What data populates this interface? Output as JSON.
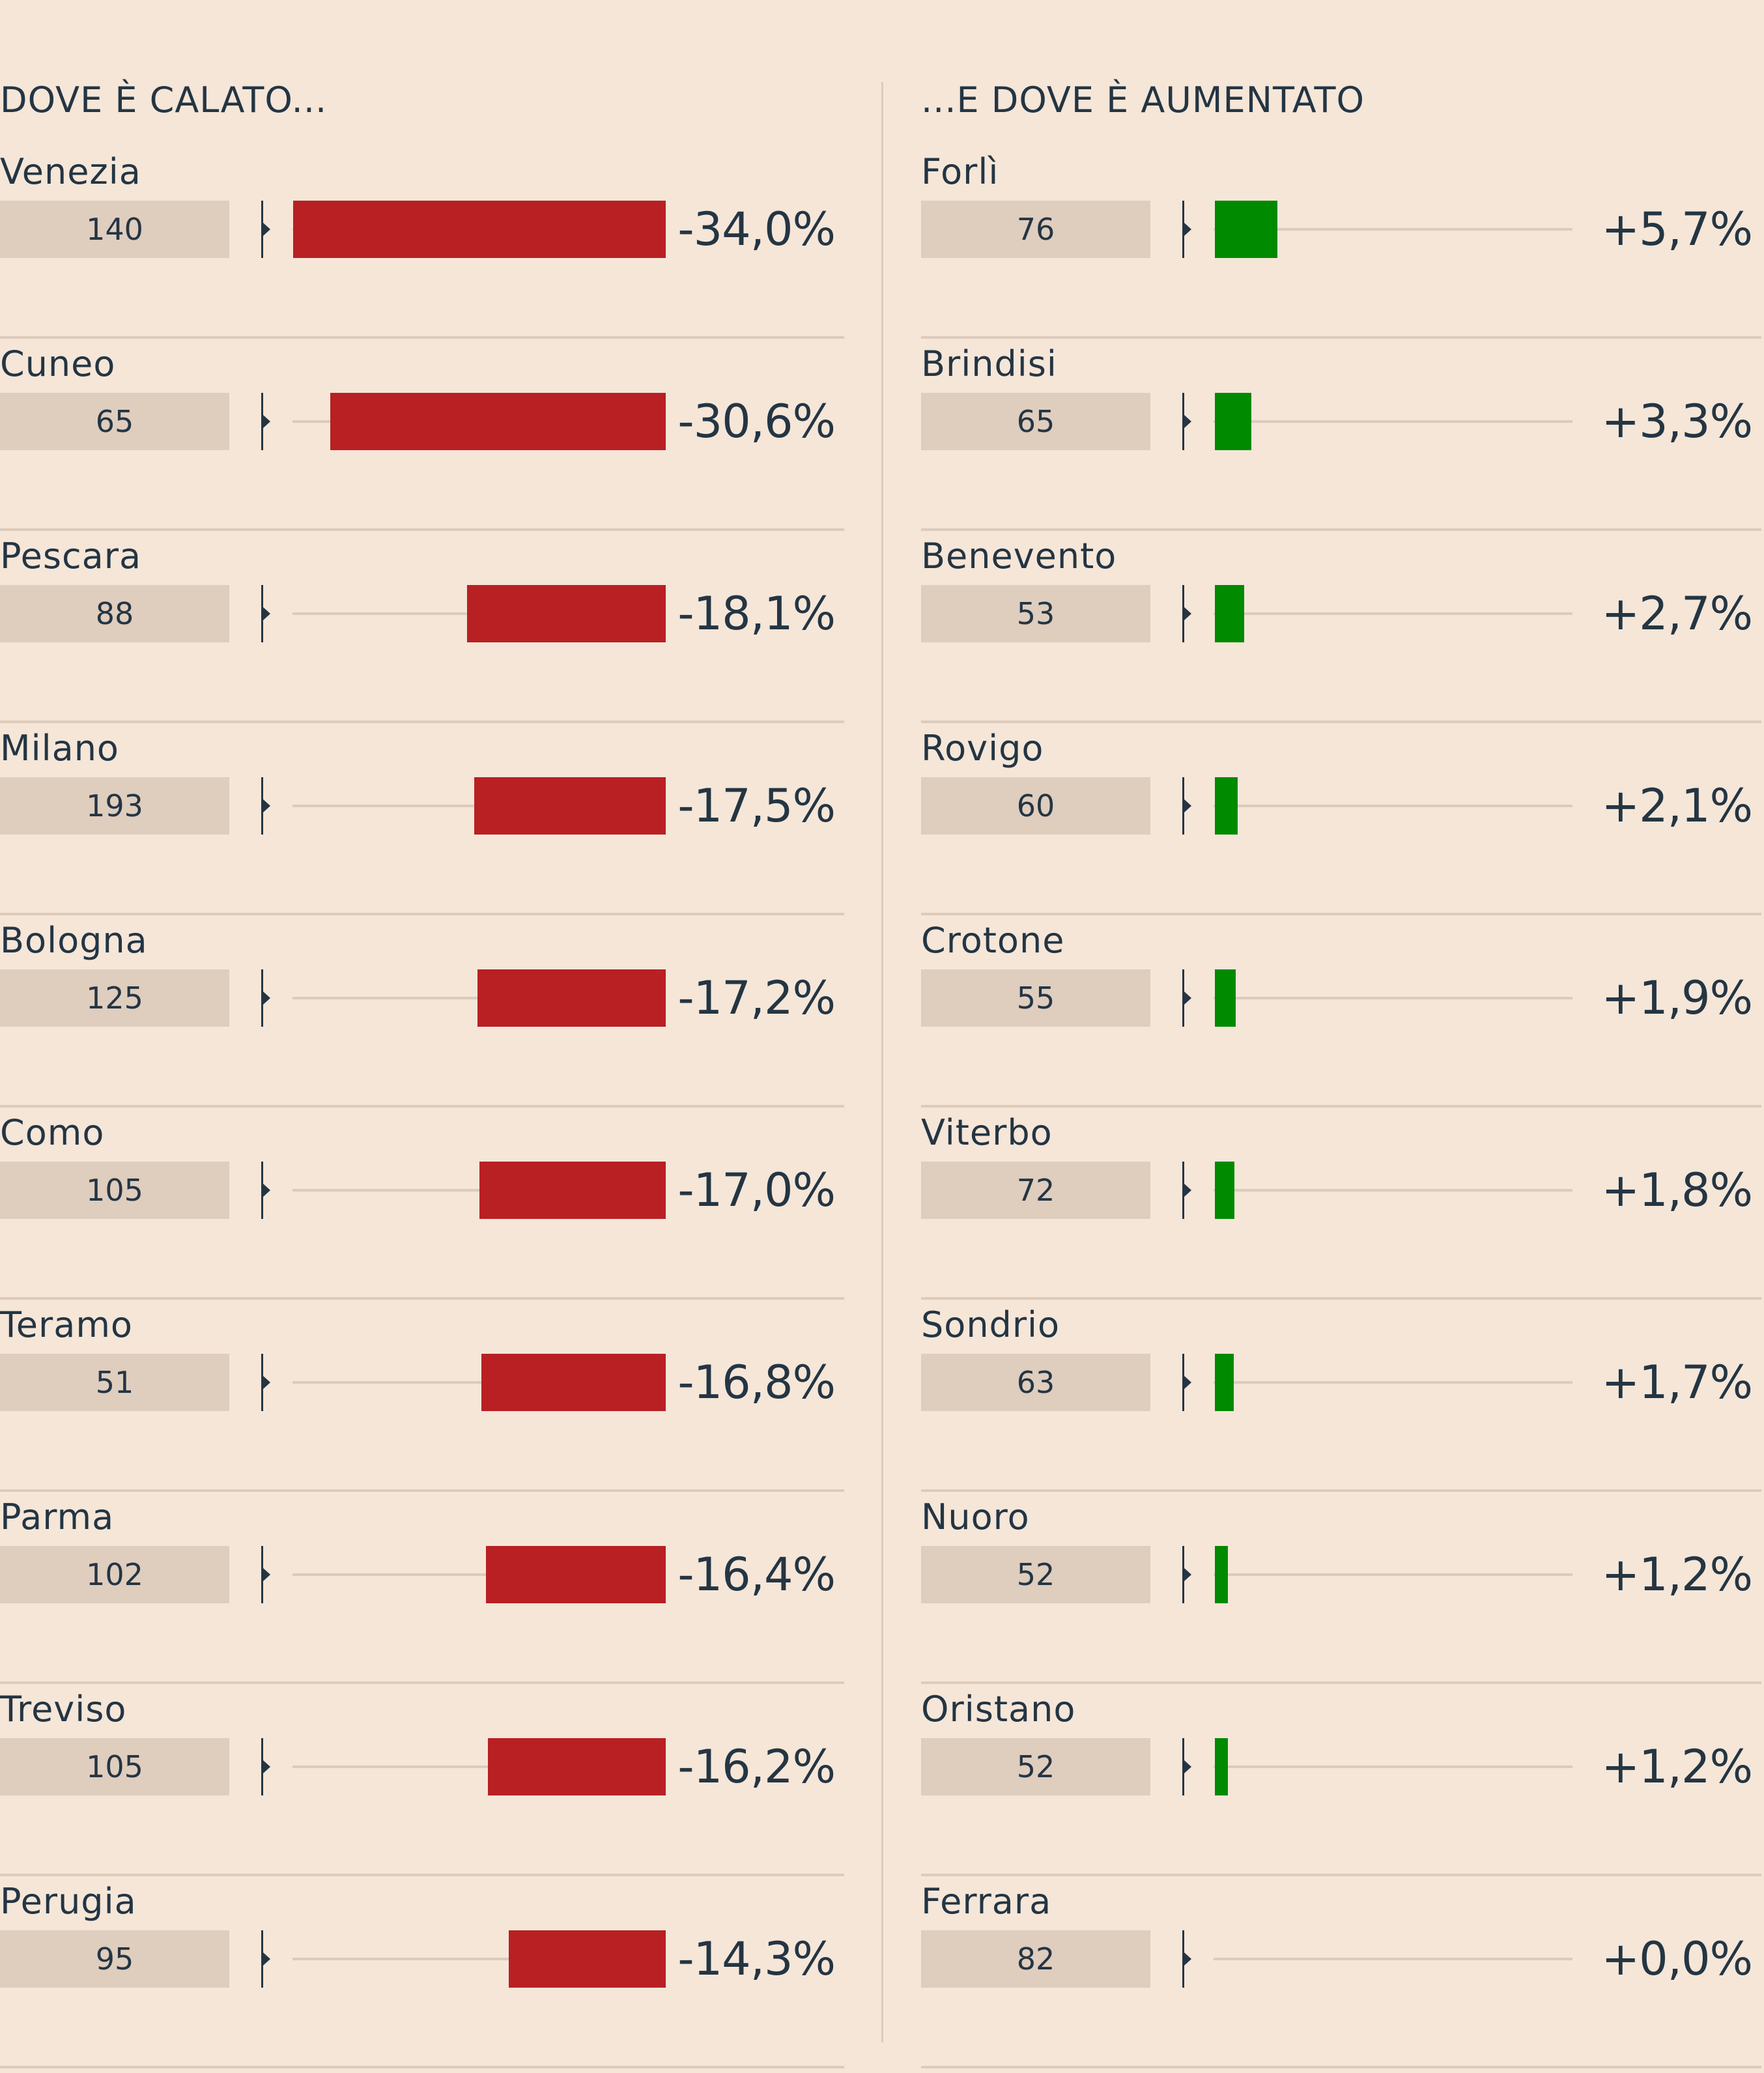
{
  "colors": {
    "background": "#f5e6d8",
    "text": "#243543",
    "count_box": "#dfcdbe",
    "separator": "#ddcbbc",
    "decrease": "#b82024",
    "increase": "#008a00"
  },
  "chart_data": [
    {
      "type": "bar",
      "title": "DOVE È CALATO...",
      "orientation": "horizontal",
      "direction": "leftward",
      "bar_color": "#b82024",
      "xlim": [
        -34.0,
        0
      ],
      "categories": [
        "Venezia",
        "Cuneo",
        "Pescara",
        "Milano",
        "Bologna",
        "Como",
        "Teramo",
        "Parma",
        "Treviso",
        "Perugia"
      ],
      "counts": [
        "140",
        "65",
        "88",
        "193",
        "125",
        "105",
        "51",
        "102",
        "105",
        "95"
      ],
      "values": [
        -34.0,
        -30.6,
        -18.1,
        -17.5,
        -17.2,
        -17.0,
        -16.8,
        -16.4,
        -16.2,
        -14.3
      ],
      "labels": [
        "-34,0%",
        "-30,6%",
        "-18,1%",
        "-17,5%",
        "-17,2%",
        "-17,0%",
        "-16,8%",
        "-16,4%",
        "-16,2%",
        "-14,3%"
      ],
      "grid": false
    },
    {
      "type": "bar",
      "title": "...E DOVE È AUMENTATO",
      "orientation": "horizontal",
      "direction": "rightward",
      "bar_color": "#008a00",
      "xlim": [
        0,
        34.0
      ],
      "categories": [
        "Forlì",
        "Brindisi",
        "Benevento",
        "Rovigo",
        "Crotone",
        "Viterbo",
        "Sondrio",
        "Nuoro",
        "Oristano",
        "Ferrara"
      ],
      "counts": [
        "76",
        "65",
        "53",
        "60",
        "55",
        "72",
        "63",
        "52",
        "52",
        "82"
      ],
      "values": [
        5.7,
        3.3,
        2.7,
        2.1,
        1.9,
        1.8,
        1.7,
        1.2,
        1.2,
        0.0
      ],
      "labels": [
        "+5,7%",
        "+3,3%",
        "+2,7%",
        "+2,1%",
        "+1,9%",
        "+1,8%",
        "+1,7%",
        "+1,2%",
        "+1,2%",
        "+0,0%"
      ],
      "grid": false
    }
  ]
}
